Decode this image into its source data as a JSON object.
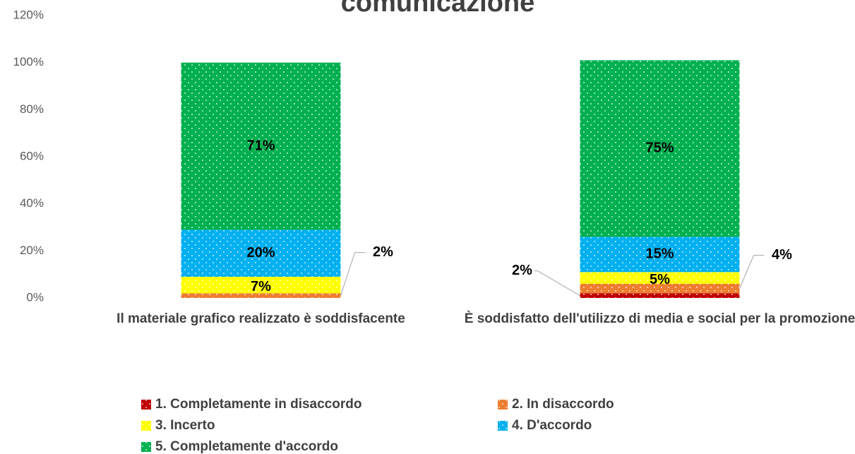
{
  "chart_data": {
    "type": "stacked_bar",
    "title": "comunicazione",
    "categories": [
      "Il materiale grafico realizzato è soddisfacente",
      "È soddisfatto dell'utilizzo di media e social per la promozione"
    ],
    "series": [
      {
        "name": "1. Completamente in disaccordo",
        "color": "#c00000",
        "values": [
          0,
          2
        ],
        "value_labels": [
          null,
          "2%"
        ]
      },
      {
        "name": "2. In disaccordo",
        "color": "#ed7d31",
        "values": [
          2,
          4
        ],
        "value_labels": [
          "2%",
          "4%"
        ]
      },
      {
        "name": "3. Incerto",
        "color": "#ffff00",
        "values": [
          7,
          5
        ],
        "value_labels": [
          "7%",
          "5%"
        ]
      },
      {
        "name": "4. D'accordo",
        "color": "#00b0f0",
        "values": [
          20,
          15
        ],
        "value_labels": [
          "20%",
          "15%"
        ]
      },
      {
        "name": "5. Completamente d'accordo",
        "color": "#00b050",
        "values": [
          71,
          75
        ],
        "value_labels": [
          "71%",
          "75%"
        ]
      }
    ],
    "pattern": "dots",
    "ylim": [
      0,
      120
    ],
    "yticks": [
      {
        "value": 0,
        "label": "0%"
      },
      {
        "value": 20,
        "label": "20%"
      },
      {
        "value": 40,
        "label": "40%"
      },
      {
        "value": 60,
        "label": "60%"
      },
      {
        "value": 80,
        "label": "80%"
      },
      {
        "value": 100,
        "label": "100%"
      },
      {
        "value": 120,
        "label": "120%"
      }
    ],
    "grid": false
  }
}
